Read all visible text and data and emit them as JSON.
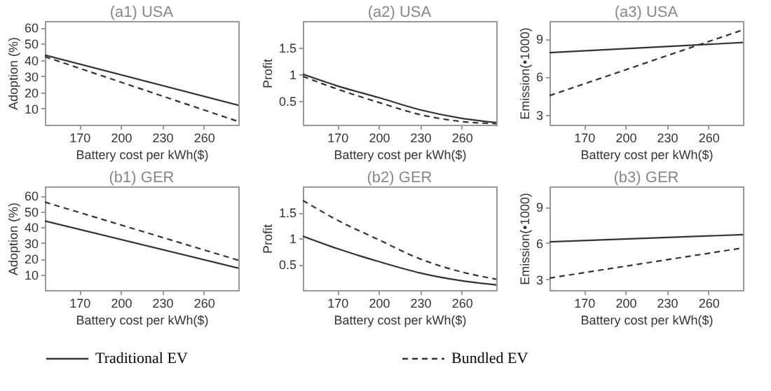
{
  "chart_data": [
    {
      "type": "line",
      "title": "(a1) USA",
      "xlabel": "Battery cost per kWh($)",
      "ylabel": "Adoption (%)",
      "xlim": [
        145,
        285
      ],
      "xticks": [
        170,
        200,
        230,
        260
      ],
      "ylim": [
        0,
        64
      ],
      "yticks": [
        10,
        20,
        30,
        40,
        50,
        60
      ],
      "grid": false,
      "legend": "bottom",
      "x": [
        145,
        285
      ],
      "series": [
        {
          "name": "Traditional EV",
          "color": "#333333",
          "line_style": "solid",
          "values": [
            43,
            12
          ]
        },
        {
          "name": "Bundled EV",
          "color": "#333333",
          "line_style": "dashed",
          "values": [
            42,
            2
          ]
        }
      ]
    },
    {
      "type": "line",
      "title": "(a2) USA",
      "xlabel": "Battery cost per kWh($)",
      "ylabel": "Profit",
      "xlim": [
        145,
        285
      ],
      "xticks": [
        170,
        200,
        230,
        260
      ],
      "ylim": [
        0.05,
        2
      ],
      "yticks": [
        0.5,
        1,
        1.5
      ],
      "grid": false,
      "legend": "bottom",
      "x": [
        145,
        170,
        200,
        230,
        260,
        285
      ],
      "series": [
        {
          "name": "Traditional EV",
          "color": "#333333",
          "line_style": "solid",
          "values": [
            1.0,
            0.78,
            0.56,
            0.33,
            0.17,
            0.09
          ]
        },
        {
          "name": "Bundled EV",
          "color": "#333333",
          "line_style": "dashed",
          "values": [
            0.96,
            0.72,
            0.47,
            0.24,
            0.11,
            0.07
          ]
        }
      ]
    },
    {
      "type": "line",
      "title": "(a3) USA",
      "xlabel": "Battery cost per kWh($)",
      "ylabel": "Emission(•1000)",
      "xlim": [
        145,
        285
      ],
      "xticks": [
        170,
        200,
        230,
        260
      ],
      "ylim": [
        2.2,
        10.4
      ],
      "yticks": [
        3,
        6,
        9
      ],
      "grid": false,
      "legend": "bottom",
      "x": [
        145,
        285
      ],
      "series": [
        {
          "name": "Traditional EV",
          "color": "#333333",
          "line_style": "solid",
          "values": [
            7.9,
            8.7
          ]
        },
        {
          "name": "Bundled EV",
          "color": "#333333",
          "line_style": "dashed",
          "values": [
            4.5,
            9.7
          ]
        }
      ]
    },
    {
      "type": "line",
      "title": "(b1) GER",
      "xlabel": "Battery cost per kWh($)",
      "ylabel": "Adoption (%)",
      "xlim": [
        145,
        285
      ],
      "xticks": [
        170,
        200,
        230,
        260
      ],
      "ylim": [
        0,
        66
      ],
      "yticks": [
        10,
        20,
        30,
        40,
        50,
        60
      ],
      "grid": false,
      "legend": "bottom",
      "x": [
        145,
        285
      ],
      "series": [
        {
          "name": "Traditional EV",
          "color": "#333333",
          "line_style": "solid",
          "values": [
            44,
            14
          ]
        },
        {
          "name": "Bundled EV",
          "color": "#333333",
          "line_style": "dashed",
          "values": [
            56,
            19
          ]
        }
      ]
    },
    {
      "type": "line",
      "title": "(b2) GER",
      "xlabel": "Battery cost per kWh($)",
      "ylabel": "Profit",
      "xlim": [
        145,
        285
      ],
      "xticks": [
        170,
        200,
        230,
        260
      ],
      "ylim": [
        0,
        2
      ],
      "yticks": [
        0.5,
        1,
        1.5
      ],
      "grid": false,
      "legend": "bottom",
      "x": [
        145,
        170,
        200,
        230,
        260,
        285
      ],
      "series": [
        {
          "name": "Traditional EV",
          "color": "#333333",
          "line_style": "solid",
          "values": [
            1.04,
            0.8,
            0.55,
            0.33,
            0.18,
            0.1
          ]
        },
        {
          "name": "Bundled EV",
          "color": "#333333",
          "line_style": "dashed",
          "values": [
            1.73,
            1.35,
            0.97,
            0.6,
            0.35,
            0.21
          ]
        }
      ]
    },
    {
      "type": "line",
      "title": "(b3) GER",
      "xlabel": "Battery cost per kWh($)",
      "ylabel": "Emission(•1000)",
      "xlim": [
        145,
        285
      ],
      "xticks": [
        170,
        200,
        230,
        260
      ],
      "ylim": [
        2.1,
        10.7
      ],
      "yticks": [
        3,
        6,
        9
      ],
      "grid": false,
      "legend": "bottom",
      "x": [
        145,
        285
      ],
      "series": [
        {
          "name": "Traditional EV",
          "color": "#333333",
          "line_style": "solid",
          "values": [
            6.1,
            6.7
          ]
        },
        {
          "name": "Bundled EV",
          "color": "#333333",
          "line_style": "dashed",
          "values": [
            3.1,
            5.6
          ]
        }
      ]
    }
  ]
}
